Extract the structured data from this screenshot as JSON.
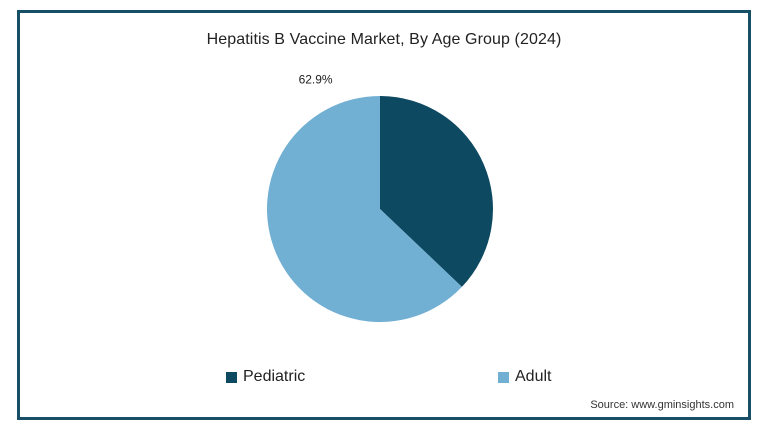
{
  "chart_data": {
    "type": "pie",
    "title": "Hepatitis B Vaccine Market, By Age Group (2024)",
    "categories": [
      "Pediatric",
      "Adult"
    ],
    "values": [
      37.1,
      62.9
    ],
    "colors": [
      "#0d4a62",
      "#72b0d3"
    ],
    "data_labels": [
      "",
      "62.9%"
    ],
    "legend_position": "bottom",
    "start_angle_deg": 0,
    "direction": "clockwise"
  },
  "legend": {
    "items": [
      {
        "label": "Pediatric",
        "color": "#0d4a62"
      },
      {
        "label": "Adult",
        "color": "#72b0d3"
      }
    ]
  },
  "source": "Source: www.gminsights.com",
  "frame_color": "#174f66"
}
